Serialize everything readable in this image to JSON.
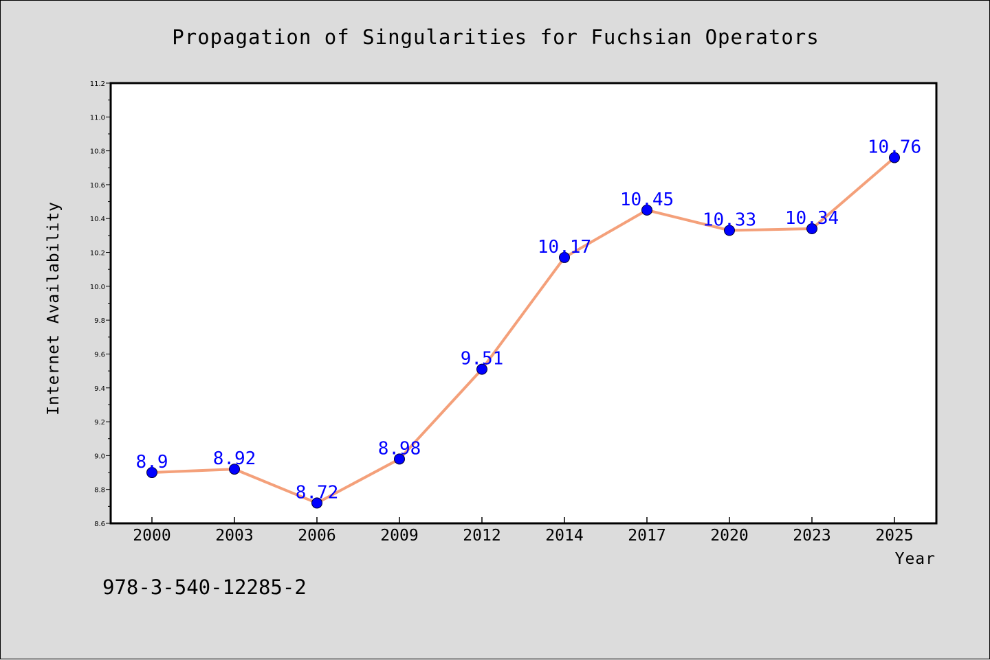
{
  "chart_data": {
    "type": "line",
    "title": "Propagation of Singularities for Fuchsian Operators",
    "xlabel": "Year",
    "ylabel": "Internet Availability",
    "categories": [
      "2000",
      "2003",
      "2006",
      "2009",
      "2012",
      "2014",
      "2017",
      "2020",
      "2023",
      "2025"
    ],
    "series": [
      {
        "values": [
          8.9,
          8.92,
          8.72,
          8.98,
          9.51,
          10.17,
          10.45,
          10.33,
          10.34,
          10.76
        ],
        "data_labels": [
          "8.9",
          "8.92",
          "8.72",
          "8.98",
          "9.51",
          "10.17",
          "10.45",
          "10.33",
          "10.34",
          "10.76"
        ],
        "line_color": "#f4a07a",
        "marker_color": "#0000ff"
      }
    ],
    "ylim": [
      8.6,
      11.2
    ],
    "yticks": [
      "8.6",
      "8.8",
      "9.0",
      "9.2",
      "9.4",
      "9.6",
      "9.8",
      "10.0",
      "10.2",
      "10.4",
      "10.6",
      "10.8",
      "11.0",
      "11.2"
    ],
    "grid": false,
    "legend": "none"
  },
  "annotation": "978-3-540-12285-2",
  "colors": {
    "background": "#dcdcdc",
    "plot_area": "#ffffff",
    "line": "#f4a07a",
    "marker": "#0000ff",
    "data_label": "#0000ff"
  }
}
